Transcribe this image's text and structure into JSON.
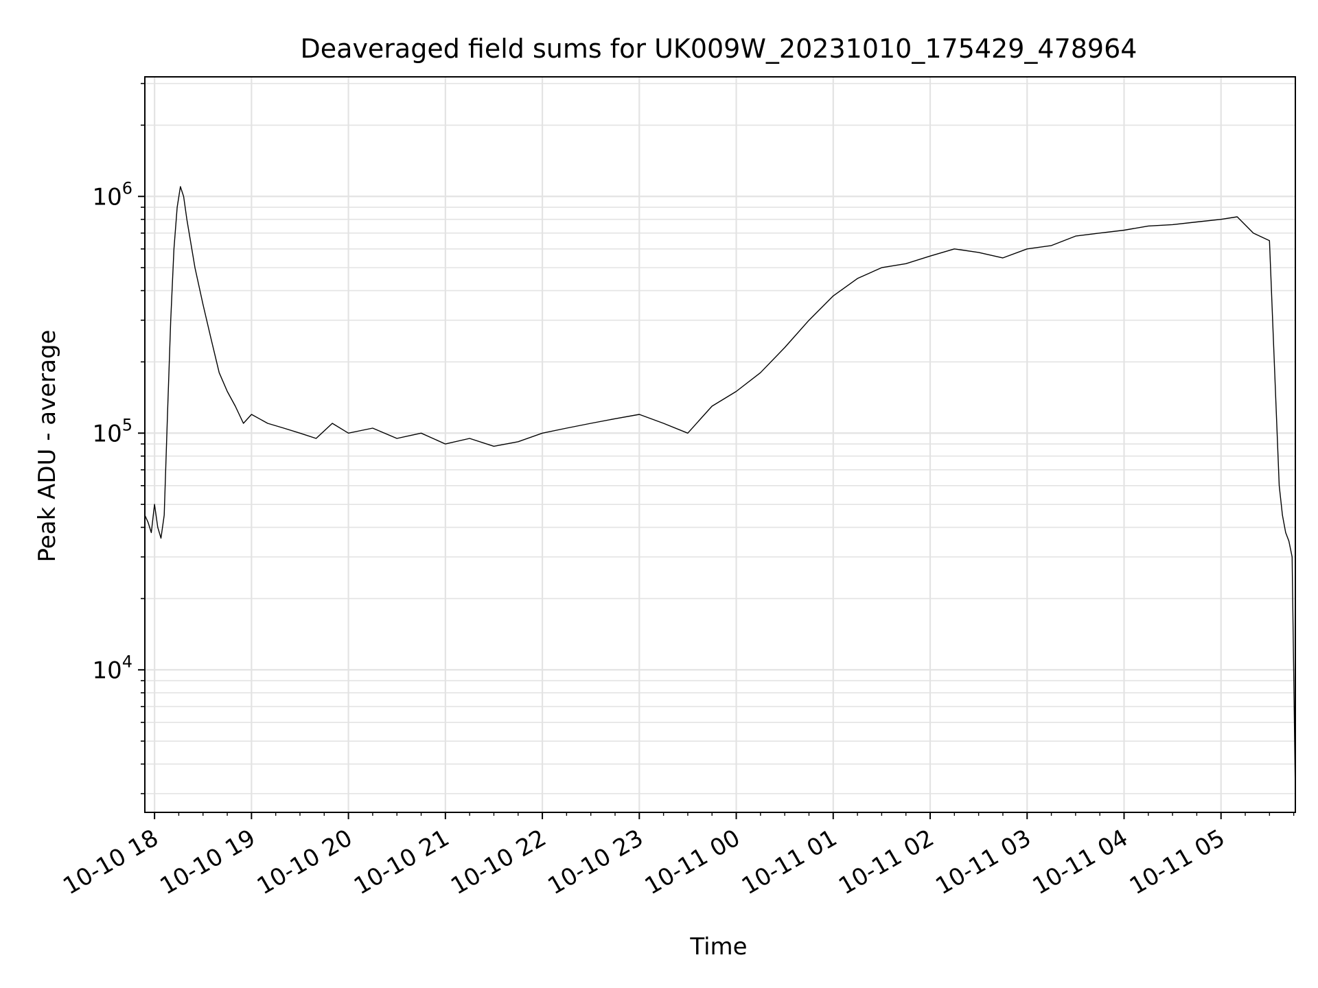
{
  "chart_data": {
    "type": "line",
    "title": "Deaveraged field sums for UK009W_20231010_175429_478964",
    "xlabel": "Time",
    "ylabel": "Peak ADU - average",
    "yscale": "log",
    "xlim": [
      "2023-10-10 17:54",
      "2023-10-11 05:46"
    ],
    "ylim": [
      2500,
      3200000
    ],
    "x_ticks": [
      "10-10 18",
      "10-10 19",
      "10-10 20",
      "10-10 21",
      "10-10 22",
      "10-10 23",
      "10-11 00",
      "10-11 01",
      "10-11 02",
      "10-11 03",
      "10-11 04",
      "10-11 05"
    ],
    "y_ticks": [
      {
        "value": 10000,
        "base": "10",
        "exp": "4"
      },
      {
        "value": 100000,
        "base": "10",
        "exp": "5"
      },
      {
        "value": 1000000,
        "base": "10",
        "exp": "6"
      }
    ],
    "grid": true,
    "line_color": "#000000",
    "series": [
      {
        "x": [
          "2023-10-10 17:54",
          "2023-10-10 17:56",
          "2023-10-10 17:58",
          "2023-10-10 18:00",
          "2023-10-10 18:02",
          "2023-10-10 18:04",
          "2023-10-10 18:06",
          "2023-10-10 18:08",
          "2023-10-10 18:10",
          "2023-10-10 18:12",
          "2023-10-10 18:14",
          "2023-10-10 18:16",
          "2023-10-10 18:18",
          "2023-10-10 18:20",
          "2023-10-10 18:25",
          "2023-10-10 18:30",
          "2023-10-10 18:35",
          "2023-10-10 18:40",
          "2023-10-10 18:45",
          "2023-10-10 18:50",
          "2023-10-10 18:55",
          "2023-10-10 19:00",
          "2023-10-10 19:10",
          "2023-10-10 19:20",
          "2023-10-10 19:30",
          "2023-10-10 19:40",
          "2023-10-10 19:50",
          "2023-10-10 20:00",
          "2023-10-10 20:15",
          "2023-10-10 20:30",
          "2023-10-10 20:45",
          "2023-10-10 21:00",
          "2023-10-10 21:15",
          "2023-10-10 21:30",
          "2023-10-10 21:45",
          "2023-10-10 22:00",
          "2023-10-10 22:15",
          "2023-10-10 22:30",
          "2023-10-10 22:45",
          "2023-10-10 23:00",
          "2023-10-10 23:15",
          "2023-10-10 23:30",
          "2023-10-10 23:45",
          "2023-10-11 00:00",
          "2023-10-11 00:15",
          "2023-10-11 00:30",
          "2023-10-11 00:45",
          "2023-10-11 01:00",
          "2023-10-11 01:15",
          "2023-10-11 01:30",
          "2023-10-11 01:45",
          "2023-10-11 02:00",
          "2023-10-11 02:15",
          "2023-10-11 02:30",
          "2023-10-11 02:45",
          "2023-10-11 03:00",
          "2023-10-11 03:15",
          "2023-10-11 03:30",
          "2023-10-11 03:45",
          "2023-10-11 04:00",
          "2023-10-11 04:15",
          "2023-10-11 04:30",
          "2023-10-11 04:45",
          "2023-10-11 05:00",
          "2023-10-11 05:10",
          "2023-10-11 05:20",
          "2023-10-11 05:30",
          "2023-10-11 05:36",
          "2023-10-11 05:38",
          "2023-10-11 05:40",
          "2023-10-11 05:42",
          "2023-10-11 05:44",
          "2023-10-11 05:46"
        ],
        "y": [
          45000,
          42000,
          38000,
          50000,
          40000,
          36000,
          45000,
          120000,
          300000,
          600000,
          900000,
          1100000,
          1000000,
          800000,
          500000,
          350000,
          250000,
          180000,
          150000,
          130000,
          110000,
          120000,
          110000,
          105000,
          100000,
          95000,
          110000,
          100000,
          105000,
          95000,
          100000,
          90000,
          95000,
          88000,
          92000,
          100000,
          105000,
          110000,
          115000,
          120000,
          110000,
          100000,
          130000,
          150000,
          180000,
          230000,
          300000,
          380000,
          450000,
          500000,
          520000,
          560000,
          600000,
          580000,
          550000,
          600000,
          620000,
          680000,
          700000,
          720000,
          750000,
          760000,
          780000,
          800000,
          820000,
          700000,
          650000,
          60000,
          45000,
          38000,
          35000,
          30000,
          3000
        ]
      }
    ]
  }
}
